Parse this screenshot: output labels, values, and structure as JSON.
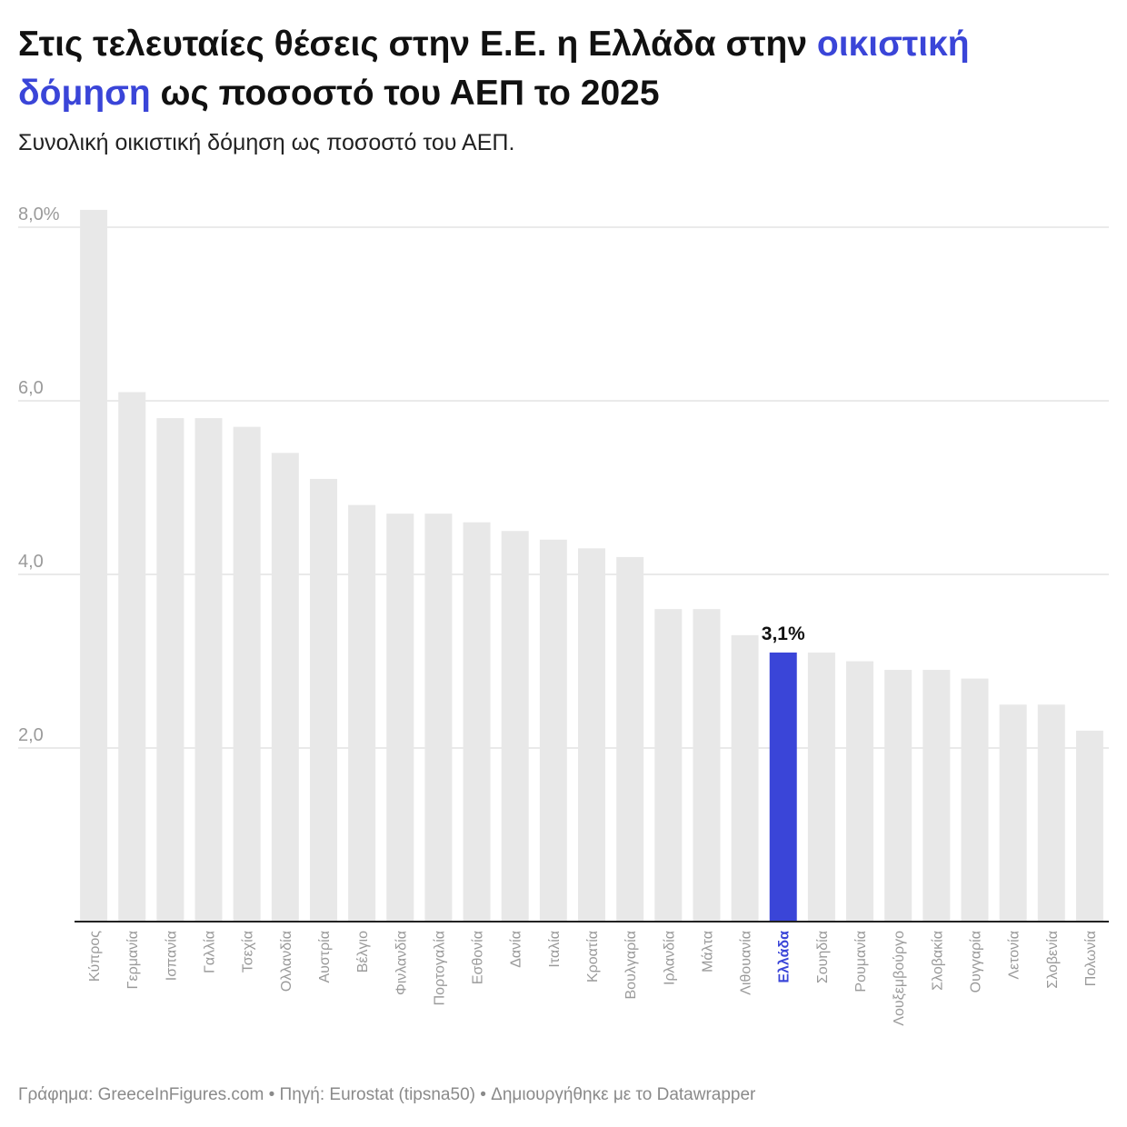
{
  "header": {
    "title_part1": "Στις τελευταίες θέσεις στην Ε.Ε. η Ελλάδα στην ",
    "title_highlight": "οικιστική δόμηση",
    "title_part2": " ως ποσοστό του ΑΕΠ το 2025",
    "subtitle": "Συνολική οικιστική δόμηση ως ποσοστό του ΑΕΠ."
  },
  "footer": {
    "text": "Γράφημα: GreeceInFigures.com • Πηγή: Eurostat (tipsna50) • Δημιουργήθηκε με το Datawrapper"
  },
  "colors": {
    "bar": "#e8e8e8",
    "highlight": "#3a45d8",
    "grid": "#e3e3e3",
    "tick_label": "#9a9a9a"
  },
  "chart_data": {
    "type": "bar",
    "categories": [
      "Κύπρος",
      "Γερμανία",
      "Ισπανία",
      "Γαλλία",
      "Τσεχία",
      "Ολλανδία",
      "Αυστρία",
      "Βέλγιο",
      "Φινλανδία",
      "Πορτογαλία",
      "Εσθονία",
      "Δανία",
      "Ιταλία",
      "Κροατία",
      "Βουλγαρία",
      "Ιρλανδία",
      "Μάλτα",
      "Λιθουανία",
      "Ελλάδα",
      "Σουηδία",
      "Ρουμανία",
      "Λουξεμβούργο",
      "Σλοβακία",
      "Ουγγαρία",
      "Λετονία",
      "Σλοβενία",
      "Πολωνία"
    ],
    "values": [
      8.2,
      6.1,
      5.8,
      5.8,
      5.7,
      5.4,
      5.1,
      4.8,
      4.7,
      4.7,
      4.6,
      4.5,
      4.4,
      4.3,
      4.2,
      3.6,
      3.6,
      3.3,
      3.1,
      3.1,
      3.0,
      2.9,
      2.9,
      2.8,
      2.5,
      2.5,
      2.2
    ],
    "highlight_category": "Ελλάδα",
    "highlight_label": "3,1%",
    "yticks": [
      {
        "value": 2,
        "label": "2,0"
      },
      {
        "value": 4,
        "label": "4,0"
      },
      {
        "value": 6,
        "label": "6,0"
      },
      {
        "value": 8,
        "label": "8,0%"
      }
    ],
    "ylim": [
      0,
      8.2
    ],
    "grid": true,
    "xlabel": "",
    "ylabel": ""
  }
}
